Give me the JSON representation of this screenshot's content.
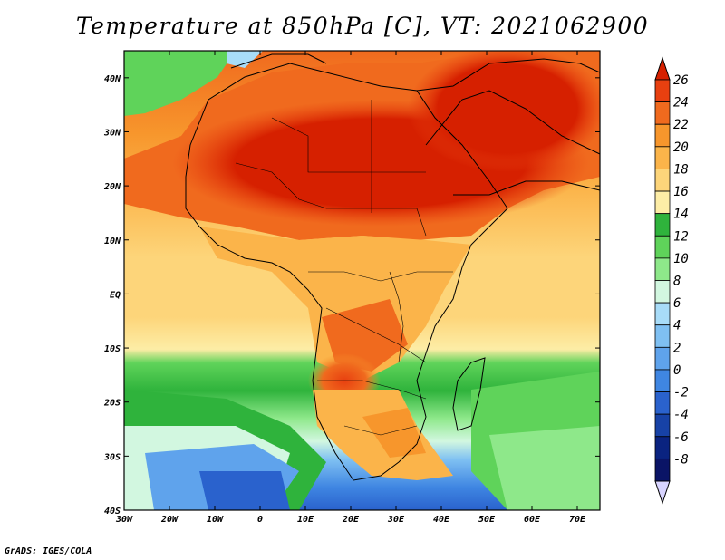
{
  "title": "Temperature at 850hPa [C], VT: 2021062900",
  "footer": "GrADS: IGES/COLA",
  "map": {
    "lon_range": [
      -30,
      75
    ],
    "lat_range": [
      -40,
      45
    ],
    "lon_ticks": [
      {
        "value": -30,
        "label": "30W"
      },
      {
        "value": -20,
        "label": "20W"
      },
      {
        "value": -10,
        "label": "10W"
      },
      {
        "value": 0,
        "label": "0"
      },
      {
        "value": 10,
        "label": "10E"
      },
      {
        "value": 20,
        "label": "20E"
      },
      {
        "value": 30,
        "label": "30E"
      },
      {
        "value": 40,
        "label": "40E"
      },
      {
        "value": 50,
        "label": "50E"
      },
      {
        "value": 60,
        "label": "60E"
      },
      {
        "value": 70,
        "label": "70E"
      }
    ],
    "lat_ticks": [
      {
        "value": 40,
        "label": "40N"
      },
      {
        "value": 30,
        "label": "30N"
      },
      {
        "value": 20,
        "label": "20N"
      },
      {
        "value": 10,
        "label": "10N"
      },
      {
        "value": 0,
        "label": "EQ"
      },
      {
        "value": -10,
        "label": "10S"
      },
      {
        "value": -20,
        "label": "20S"
      },
      {
        "value": -30,
        "label": "30S"
      },
      {
        "value": -40,
        "label": "40S"
      }
    ]
  },
  "colorbar": {
    "levels": [
      "26",
      "24",
      "22",
      "20",
      "18",
      "16",
      "14",
      "12",
      "10",
      "8",
      "6",
      "4",
      "2",
      "0",
      "-2",
      "-4",
      "-6",
      "-8"
    ],
    "colors": [
      "#d62000",
      "#e84010",
      "#f06a1e",
      "#f7962c",
      "#fbb44a",
      "#fdd57a",
      "#fdeda6",
      "#2fb33c",
      "#5fd35a",
      "#8ee88a",
      "#d2f7e0",
      "#a8dcf8",
      "#7fc0f2",
      "#5fa3ec",
      "#3f86e2",
      "#2a62cd",
      "#1742a6",
      "#0a2380",
      "#0a1466",
      "#d8d4ff"
    ]
  },
  "colors": {
    "ocean_cold": "#2a62cd",
    "ocean_warm": "#fdd57a",
    "hot_land": "#d62000"
  }
}
